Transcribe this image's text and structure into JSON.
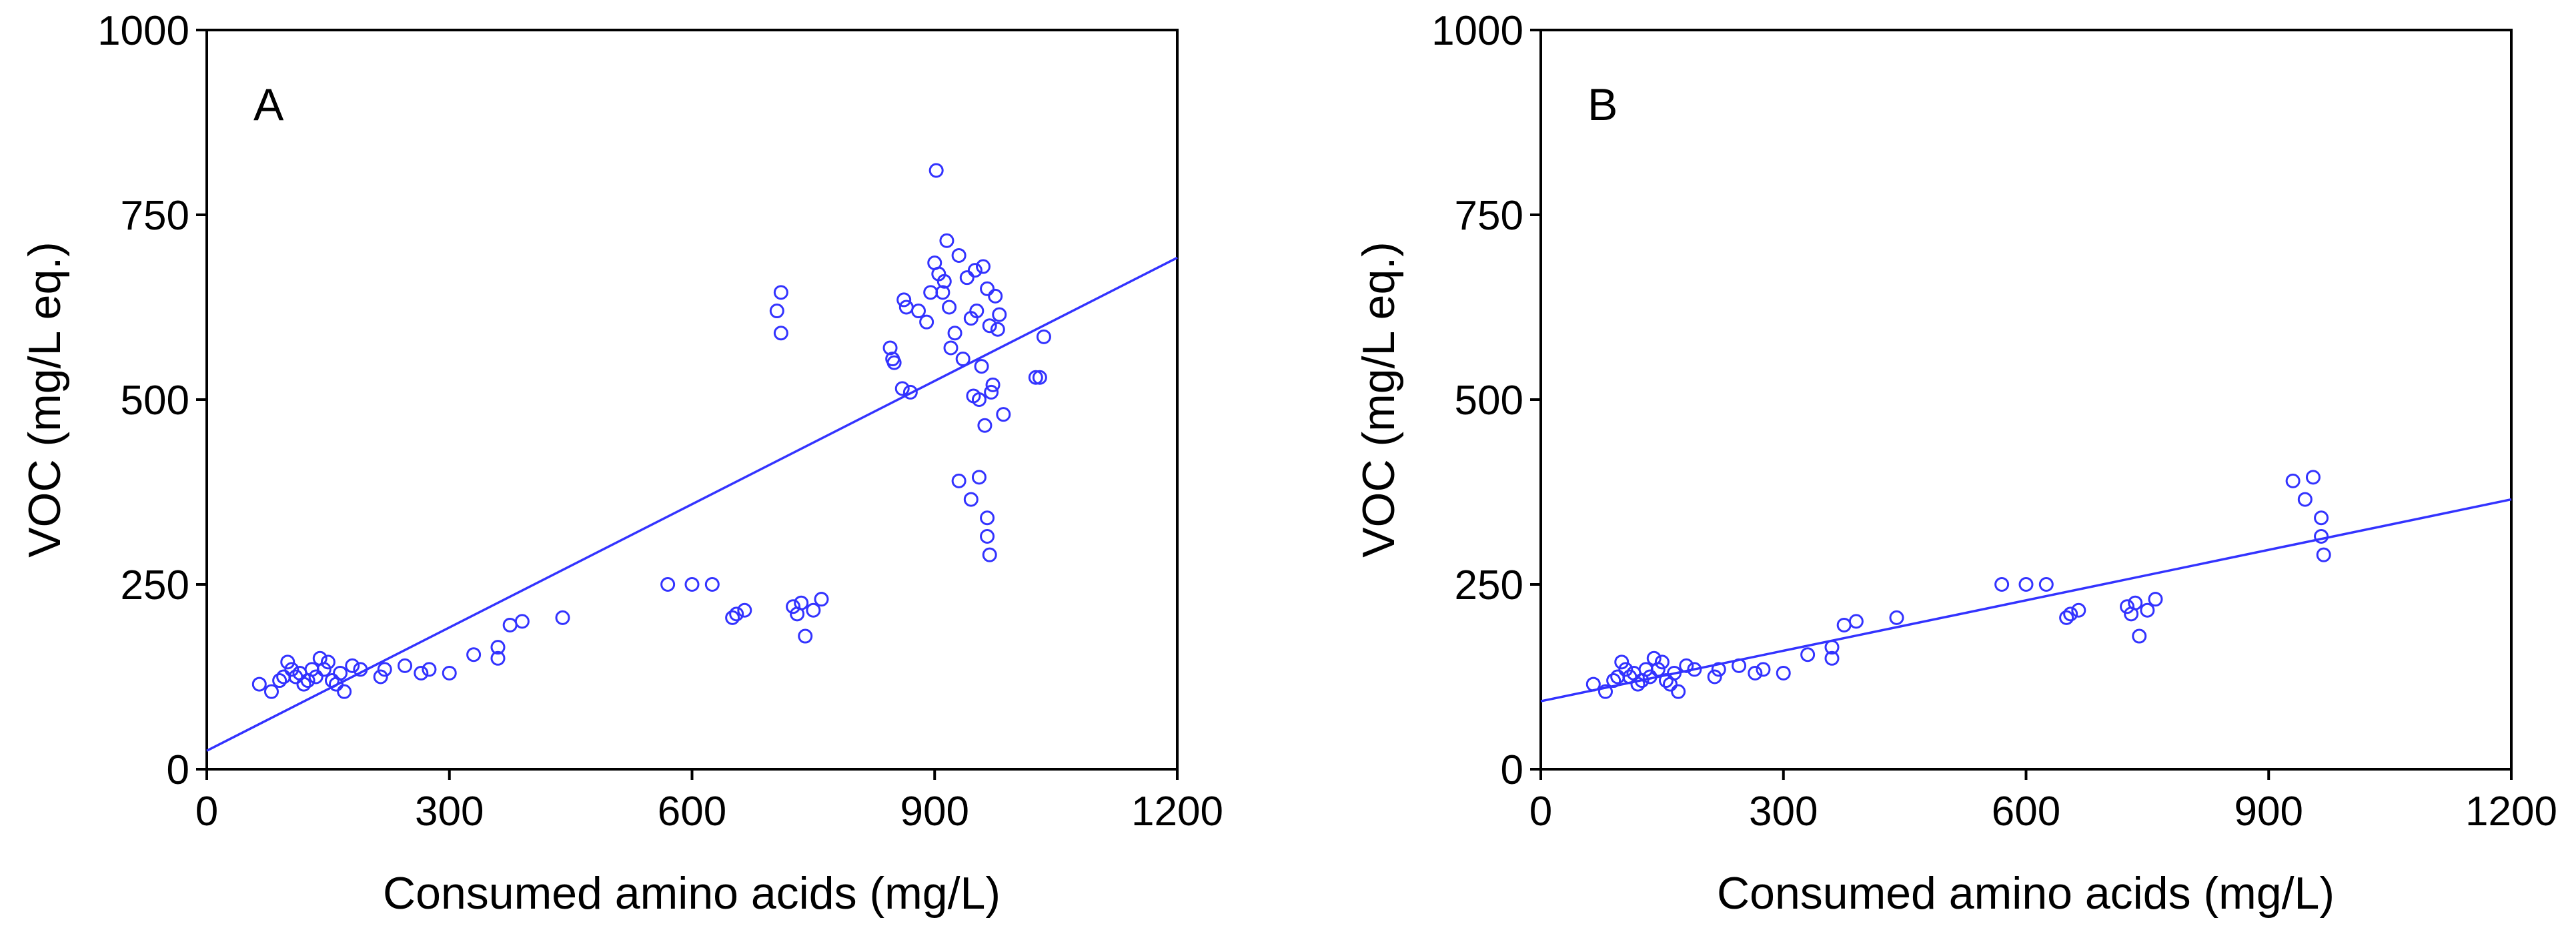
{
  "colors": {
    "marker": "#3333ff",
    "fit_line": "#3333ff",
    "axis": "#000000"
  },
  "chart_data": [
    {
      "type": "scatter",
      "panel_label": "A",
      "xlabel": "Consumed amino acids (mg/L)",
      "ylabel": "VOC (mg/L eq.)",
      "xlim": [
        0,
        1200
      ],
      "ylim": [
        0,
        1000
      ],
      "xticks": [
        "0",
        "300",
        "600",
        "900",
        "1200"
      ],
      "yticks": [
        "0",
        "250",
        "500",
        "750",
        "1000"
      ],
      "grid": false,
      "fit_line": {
        "x": [
          0,
          1200
        ],
        "y": [
          25,
          692
        ]
      },
      "points": {
        "x": [
          65,
          80,
          90,
          95,
          100,
          105,
          110,
          115,
          120,
          125,
          130,
          135,
          140,
          145,
          150,
          155,
          160,
          165,
          170,
          180,
          190,
          215,
          220,
          245,
          265,
          275,
          300,
          330,
          360,
          360,
          375,
          390,
          440,
          570,
          600,
          625,
          650,
          655,
          665,
          705,
          710,
          710,
          725,
          730,
          735,
          740,
          750,
          760,
          845,
          848,
          850,
          860,
          862,
          865,
          870,
          880,
          890,
          895,
          900,
          902,
          905,
          910,
          912,
          915,
          918,
          920,
          925,
          930,
          935,
          940,
          945,
          948,
          950,
          952,
          955,
          958,
          960,
          962,
          965,
          968,
          970,
          972,
          975,
          978,
          980,
          985,
          1025,
          1030,
          1035,
          930,
          945,
          955,
          965,
          965,
          968
        ],
        "y": [
          115,
          105,
          120,
          125,
          145,
          135,
          125,
          130,
          115,
          120,
          135,
          125,
          150,
          135,
          145,
          120,
          115,
          130,
          105,
          140,
          135,
          125,
          135,
          140,
          130,
          135,
          130,
          155,
          165,
          150,
          195,
          200,
          205,
          250,
          250,
          250,
          205,
          210,
          215,
          620,
          645,
          590,
          220,
          210,
          225,
          180,
          215,
          230,
          570,
          555,
          550,
          515,
          635,
          625,
          510,
          620,
          605,
          645,
          685,
          810,
          670,
          645,
          660,
          715,
          625,
          570,
          590,
          695,
          555,
          665,
          610,
          505,
          675,
          620,
          500,
          545,
          680,
          465,
          650,
          600,
          510,
          520,
          640,
          595,
          615,
          480,
          530,
          530,
          585,
          390,
          365,
          395,
          340,
          315,
          290
        ]
      }
    },
    {
      "type": "scatter",
      "panel_label": "B",
      "xlabel": "Consumed amino acids (mg/L)",
      "ylabel": "VOC (mg/L eq.)",
      "xlim": [
        0,
        1200
      ],
      "ylim": [
        0,
        1000
      ],
      "xticks": [
        "0",
        "300",
        "600",
        "900",
        "1200"
      ],
      "yticks": [
        "0",
        "250",
        "500",
        "750",
        "1000"
      ],
      "grid": false,
      "fit_line": {
        "x": [
          0,
          1200
        ],
        "y": [
          92,
          365
        ]
      },
      "points": {
        "x": [
          65,
          80,
          90,
          95,
          100,
          105,
          110,
          115,
          120,
          125,
          130,
          135,
          140,
          145,
          150,
          155,
          160,
          165,
          170,
          180,
          190,
          215,
          220,
          245,
          265,
          275,
          300,
          330,
          360,
          360,
          375,
          390,
          440,
          570,
          600,
          625,
          650,
          655,
          665,
          725,
          730,
          735,
          740,
          750,
          760,
          930,
          945,
          955,
          965,
          965,
          968
        ],
        "y": [
          115,
          105,
          120,
          125,
          145,
          135,
          125,
          130,
          115,
          120,
          135,
          125,
          150,
          135,
          145,
          120,
          115,
          130,
          105,
          140,
          135,
          125,
          135,
          140,
          130,
          135,
          130,
          155,
          165,
          150,
          195,
          200,
          205,
          250,
          250,
          250,
          205,
          210,
          215,
          220,
          210,
          225,
          180,
          215,
          230,
          390,
          365,
          395,
          340,
          315,
          290
        ]
      }
    }
  ]
}
